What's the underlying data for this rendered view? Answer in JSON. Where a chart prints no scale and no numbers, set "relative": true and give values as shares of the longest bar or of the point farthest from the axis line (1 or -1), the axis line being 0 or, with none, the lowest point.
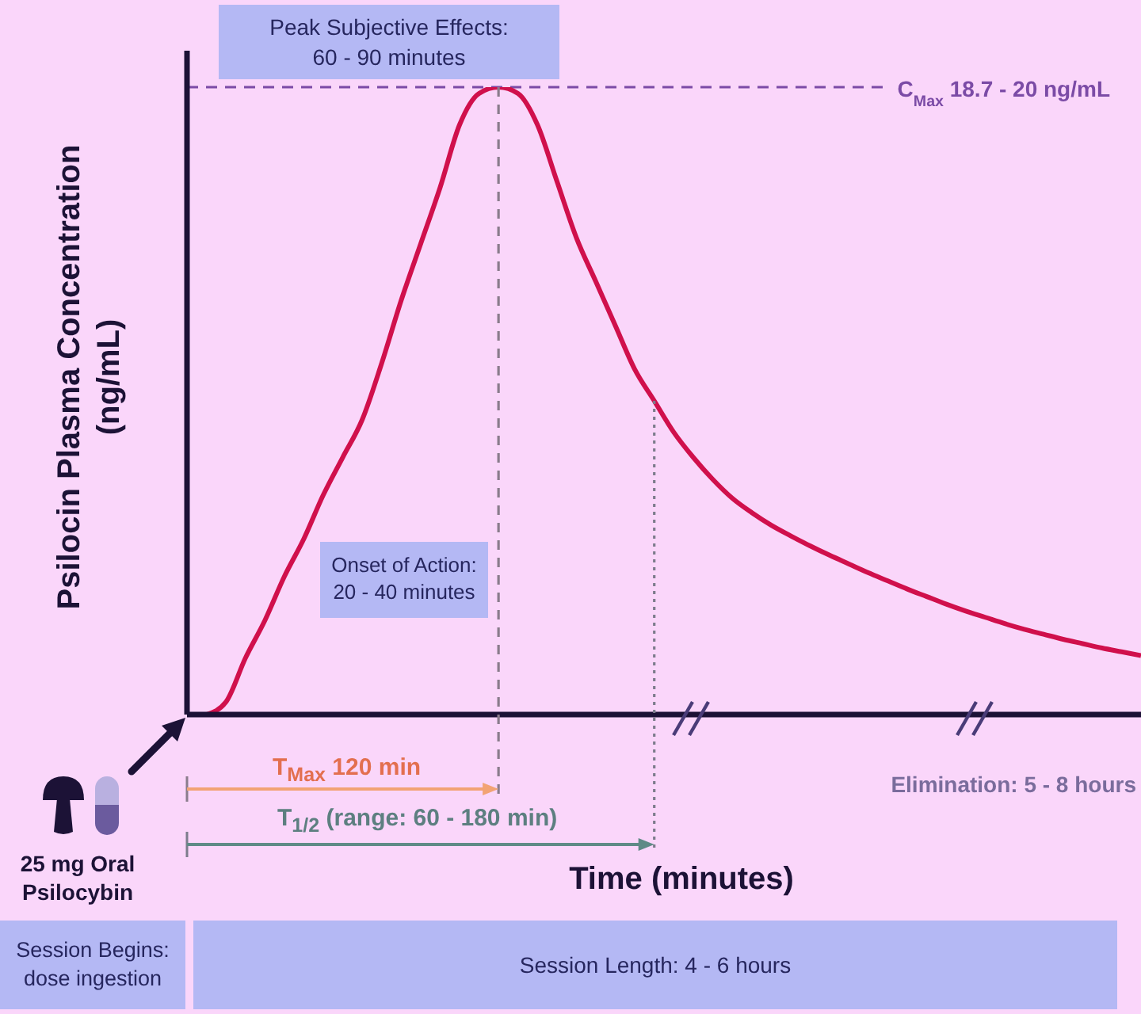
{
  "chart_data": {
    "type": "line",
    "relative": true,
    "tick_labels": false,
    "xlabel": "Time (minutes)",
    "ylabel": "Psilocin Plasma Concentration (ng/mL)",
    "categories": [
      null,
      null,
      null,
      null,
      null,
      null,
      null,
      null,
      null,
      null,
      null,
      null,
      null,
      null,
      null,
      null,
      null,
      null,
      null,
      null,
      null,
      null,
      null,
      null,
      null,
      null,
      null,
      null,
      null,
      null,
      null,
      null,
      null,
      null,
      null,
      null,
      null,
      null,
      null,
      null,
      null,
      null,
      null,
      null,
      null,
      null,
      null,
      null,
      null,
      null
    ],
    "color": "#d0104c",
    "values": [
      null,
      0,
      0.02,
      0.09,
      0.15,
      0.22,
      0.28,
      0.35,
      0.41,
      0.47,
      0.56,
      0.66,
      0.75,
      0.84,
      0.94,
      0.99,
      1,
      0.99,
      0.94,
      0.85,
      0.76,
      0.69,
      0.62,
      0.55,
      0.5,
      0.45,
      0.41,
      0.375,
      0.345,
      0.322,
      0.302,
      0.285,
      0.269,
      0.254,
      0.24,
      0.226,
      0.213,
      0.2,
      0.188,
      0.176,
      0.165,
      0.155,
      0.145,
      0.136,
      0.128,
      0.12,
      0.113,
      0.106,
      0.1,
      0.094
    ],
    "ref_lines": [
      {
        "axis": "y",
        "value": 1,
        "label": "C$_{Max}$ 18.7 - 20 ng/mL",
        "color": "#7b4ba6",
        "line_style": "dashed"
      }
    ],
    "annotations": [
      "Peak Subjective Effects: 60 - 90 minutes",
      "Onset of Action: 20 - 40 minutes",
      "T$_{Max}$ 120 min",
      "T$_{1/2}$ (range: 60 - 180 min)",
      "Elimination: 5 - 8 hours",
      "25 mg Oral Psilocybin",
      "Session Begins: dose ingestion",
      "Session Length: 4 - 6 hours"
    ]
  }
}
